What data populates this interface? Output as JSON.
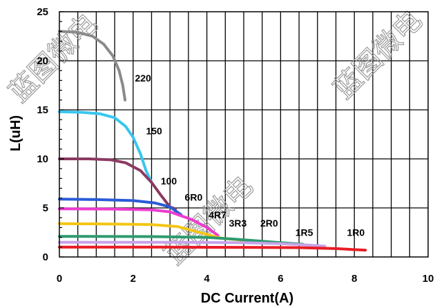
{
  "chart_data": {
    "type": "line",
    "xlabel": "DC Current(A)",
    "ylabel": "L(uH)",
    "xlim": [
      0,
      10
    ],
    "ylim": [
      0,
      25
    ],
    "x_ticks": [
      "0",
      "2",
      "4",
      "6",
      "8",
      "10"
    ],
    "y_ticks": [
      "0",
      "5",
      "10",
      "15",
      "20",
      "25"
    ],
    "grid": true,
    "watermark_text": "蓝图微电",
    "series": [
      {
        "name": "220",
        "color": "#8a8a8a",
        "label_at": [
          2.05,
          17.9
        ],
        "points": [
          [
            0,
            23
          ],
          [
            0.5,
            22.9
          ],
          [
            0.9,
            22.5
          ],
          [
            1.2,
            21.7
          ],
          [
            1.45,
            20.5
          ],
          [
            1.62,
            19
          ],
          [
            1.72,
            17.5
          ],
          [
            1.78,
            16
          ]
        ]
      },
      {
        "name": "150",
        "color": "#39c6ee",
        "label_at": [
          2.35,
          12.5
        ],
        "points": [
          [
            0,
            14.8
          ],
          [
            0.6,
            14.75
          ],
          [
            1.1,
            14.6
          ],
          [
            1.5,
            14.2
          ],
          [
            1.8,
            13.3
          ],
          [
            2.0,
            12.2
          ],
          [
            2.2,
            10.5
          ],
          [
            2.35,
            8.8
          ],
          [
            2.5,
            7.6
          ]
        ]
      },
      {
        "name": "100",
        "color": "#8b3a62",
        "label_at": [
          2.75,
          7.4
        ],
        "points": [
          [
            0,
            10
          ],
          [
            0.8,
            10
          ],
          [
            1.4,
            9.9
          ],
          [
            1.8,
            9.6
          ],
          [
            2.2,
            8.8
          ],
          [
            2.5,
            7.6
          ],
          [
            2.75,
            6.3
          ],
          [
            3.0,
            5.1
          ],
          [
            3.15,
            4.9
          ]
        ]
      },
      {
        "name": "6R0",
        "color": "#2a5bd7",
        "label_at": [
          3.4,
          5.75
        ],
        "points": [
          [
            0,
            5.9
          ],
          [
            1.0,
            5.85
          ],
          [
            2.0,
            5.75
          ],
          [
            2.6,
            5.5
          ],
          [
            3.0,
            5.1
          ],
          [
            3.3,
            4.3
          ]
        ]
      },
      {
        "name": "4R7",
        "color": "#ee3bd0",
        "label_at": [
          4.05,
          3.95
        ],
        "points": [
          [
            0,
            4.9
          ],
          [
            1.5,
            4.88
          ],
          [
            2.5,
            4.8
          ],
          [
            3.0,
            4.6
          ],
          [
            3.6,
            3.8
          ],
          [
            4.0,
            3.0
          ],
          [
            4.3,
            2.2
          ]
        ]
      },
      {
        "name": "3R3",
        "color": "#f3c614",
        "label_at": [
          4.6,
          3.1
        ],
        "points": [
          [
            0,
            3.4
          ],
          [
            1.5,
            3.35
          ],
          [
            2.5,
            3.3
          ],
          [
            3.2,
            3.1
          ],
          [
            3.8,
            2.5
          ],
          [
            4.4,
            1.9
          ],
          [
            5.0,
            1.7
          ]
        ]
      },
      {
        "name": "2R0",
        "color": "#2e9a6e",
        "label_at": [
          5.45,
          3.1
        ],
        "points": [
          [
            0,
            2.1
          ],
          [
            2.5,
            2.08
          ],
          [
            4.0,
            2.0
          ],
          [
            4.8,
            1.8
          ],
          [
            5.5,
            1.6
          ],
          [
            6.2,
            1.4
          ],
          [
            6.6,
            1.3
          ]
        ]
      },
      {
        "name": "1R5",
        "color": "#c7a3e8",
        "label_at": [
          6.4,
          2.15
        ],
        "points": [
          [
            0,
            1.5
          ],
          [
            3.0,
            1.5
          ],
          [
            5.0,
            1.45
          ],
          [
            6.0,
            1.35
          ],
          [
            6.6,
            1.25
          ],
          [
            7.2,
            1.1
          ]
        ]
      },
      {
        "name": "1R0",
        "color": "#e81c24",
        "label_at": [
          7.8,
          2.15
        ],
        "points": [
          [
            0,
            1.0
          ],
          [
            3.0,
            1.0
          ],
          [
            5.0,
            0.98
          ],
          [
            6.5,
            0.95
          ],
          [
            7.5,
            0.85
          ],
          [
            8.0,
            0.75
          ],
          [
            8.3,
            0.7
          ]
        ]
      }
    ]
  }
}
